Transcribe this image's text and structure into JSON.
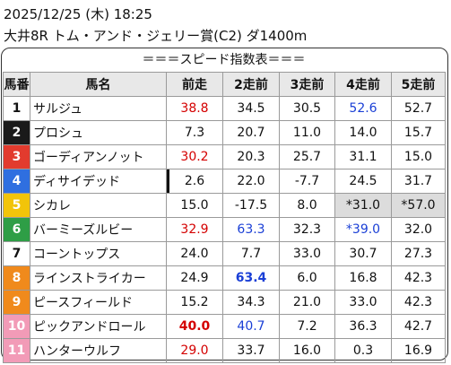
{
  "header": {
    "datetime": "2025/12/25 (木) 18:25",
    "race": "大井8R トム・アンド・ジェリー賞(C2) ダ1400m"
  },
  "table": {
    "title": "＝＝＝スピード指数表＝＝＝",
    "columns": [
      "馬番",
      "馬名",
      "前走",
      "2走前",
      "3走前",
      "4走前",
      "5走前"
    ],
    "rows": [
      {
        "num": "1",
        "name": "サルジュ",
        "vals": [
          "38.8",
          "34.5",
          "30.5",
          "52.6",
          "52.7"
        ]
      },
      {
        "num": "2",
        "name": "プロシュ",
        "vals": [
          "7.3",
          "20.7",
          "11.0",
          "14.0",
          "15.7"
        ]
      },
      {
        "num": "3",
        "name": "ゴーディアンノット",
        "vals": [
          "30.2",
          "20.3",
          "25.7",
          "31.1",
          "15.0"
        ]
      },
      {
        "num": "4",
        "name": "ディサイデッド",
        "vals": [
          "2.6",
          "22.0",
          "-7.7",
          "24.5",
          "31.7"
        ]
      },
      {
        "num": "5",
        "name": "シカレ",
        "vals": [
          "15.0",
          "-17.5",
          "8.0",
          "*31.0",
          "*57.0"
        ]
      },
      {
        "num": "6",
        "name": "バーミーズルビー",
        "vals": [
          "32.9",
          "63.3",
          "32.3",
          "*39.0",
          "32.0"
        ]
      },
      {
        "num": "7",
        "name": "コーントップス",
        "vals": [
          "24.0",
          "7.7",
          "33.0",
          "30.7",
          "27.3"
        ]
      },
      {
        "num": "8",
        "name": "ラインストライカー",
        "vals": [
          "24.9",
          "63.4",
          "6.0",
          "16.8",
          "42.3"
        ]
      },
      {
        "num": "9",
        "name": "ピースフィールド",
        "vals": [
          "15.2",
          "34.3",
          "21.0",
          "33.0",
          "42.3"
        ]
      },
      {
        "num": "10",
        "name": "ピックアンドロール",
        "vals": [
          "40.0",
          "40.7",
          "7.2",
          "36.3",
          "42.7"
        ]
      },
      {
        "num": "11",
        "name": "ハンターウルフ",
        "vals": [
          "29.0",
          "33.7",
          "16.0",
          "0.3",
          "16.9"
        ]
      }
    ]
  },
  "colors": {
    "frame_colors": [
      "#ffffff",
      "#1a1a1a",
      "#e23b2e",
      "#2f6fe0",
      "#f2c40a",
      "#2e9e46",
      "#ffffff",
      "#f08a1c",
      "#f08a1c",
      "#f29bb7",
      "#f29bb7"
    ],
    "frame_text": [
      "#111111",
      "#ffffff",
      "#ffffff",
      "#ffffff",
      "#ffffff",
      "#ffffff",
      "#111111",
      "#ffffff",
      "#ffffff",
      "#ffffff",
      "#ffffff"
    ],
    "red": "#d40000",
    "blue": "#1a3fd6",
    "highlight_gray": "#dcdcdc"
  },
  "cell_styles": [
    [
      "red",
      "",
      "",
      "blue",
      ""
    ],
    [
      "",
      "",
      "",
      "",
      ""
    ],
    [
      "red",
      "",
      "",
      "",
      ""
    ],
    [
      "",
      "",
      "",
      "",
      ""
    ],
    [
      "",
      "",
      "",
      "shade",
      "shade"
    ],
    [
      "red",
      "blue",
      "",
      "blue",
      ""
    ],
    [
      "",
      "",
      "",
      "",
      ""
    ],
    [
      "",
      "blue bold",
      "",
      "",
      ""
    ],
    [
      "",
      "",
      "",
      "",
      ""
    ],
    [
      "red bold",
      "blue",
      "",
      "",
      ""
    ],
    [
      "red",
      "",
      "",
      "",
      ""
    ]
  ]
}
